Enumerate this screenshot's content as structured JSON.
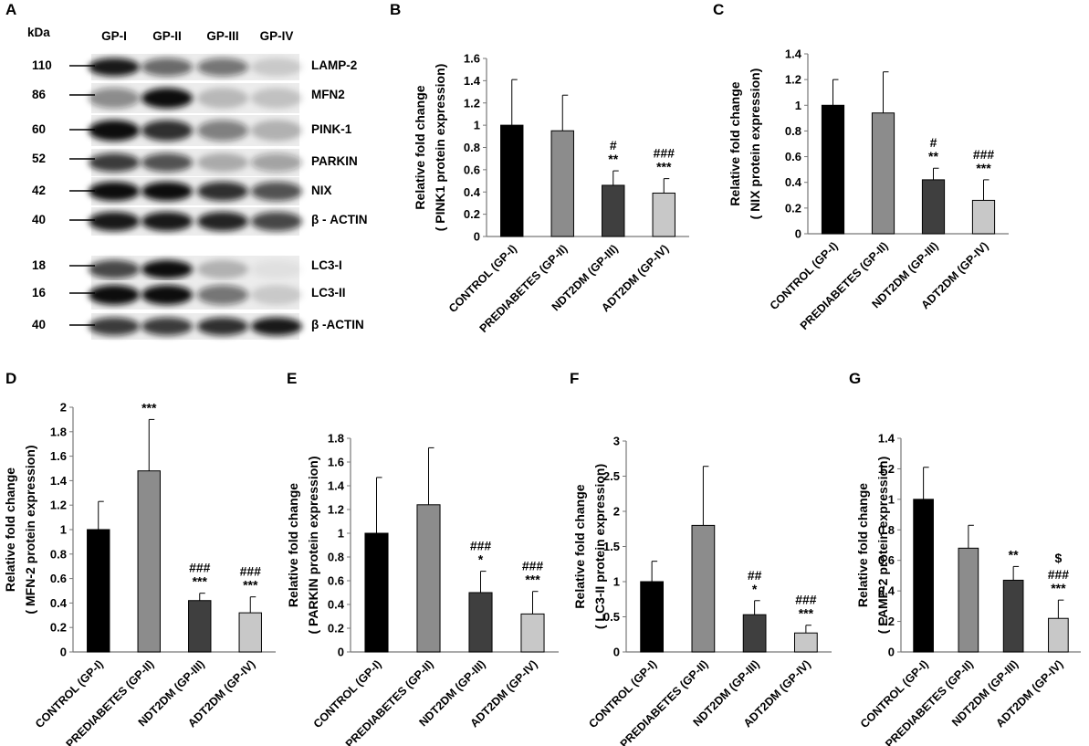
{
  "figure_title": "",
  "western_blot": {
    "panel_label": "A",
    "kda_label": "kDa",
    "lanes": [
      "GP-I",
      "GP-II",
      "GP-III",
      "GP-IV"
    ],
    "bands": [
      {
        "mw": "110",
        "protein": "LAMP-2"
      },
      {
        "mw": "86",
        "protein": "MFN2"
      },
      {
        "mw": "60",
        "protein": "PINK-1"
      },
      {
        "mw": "52",
        "protein": "PARKIN"
      },
      {
        "mw": "42",
        "protein": "NIX"
      },
      {
        "mw": "40",
        "protein": "β - ACTIN"
      },
      {
        "mw": "18",
        "protein": "LC3-I"
      },
      {
        "mw": "16",
        "protein": "LC3-II"
      },
      {
        "mw": "40",
        "protein": "β -ACTIN"
      }
    ]
  },
  "chart_data": [
    {
      "panel": "B",
      "type": "bar",
      "categories": [
        "CONTROL (GP-I)",
        "PREDIABETES (GP-II)",
        "NDT2DM (GP-III)",
        "ADT2DM (GP-IV)"
      ],
      "values": [
        1.0,
        0.95,
        0.46,
        0.39
      ],
      "errors": [
        0.41,
        0.32,
        0.13,
        0.13
      ],
      "ylabel": [
        "Relative fold change",
        "( PINK1 protein expression)"
      ],
      "ylim": [
        0,
        1.6
      ],
      "ytick_step": 0.2,
      "yticks": [
        "0",
        "0.2",
        "0.4",
        "0.6",
        "0.8",
        "1",
        "1.2",
        "1.4",
        "1.6"
      ],
      "significance": [
        [],
        [],
        [
          "#",
          "**"
        ],
        [
          "###",
          "***"
        ]
      ],
      "bar_colors": [
        "#000000",
        "#8c8c8c",
        "#3f3f3f",
        "#c8c8c8"
      ],
      "grid": false
    },
    {
      "panel": "C",
      "type": "bar",
      "categories": [
        "CONTROL (GP-I)",
        "PREDIABETES (GP-II)",
        "NDT2DM (GP-III)",
        "ADT2DM (GP-IV)"
      ],
      "values": [
        1.0,
        0.94,
        0.42,
        0.26
      ],
      "errors": [
        0.2,
        0.32,
        0.09,
        0.16
      ],
      "ylabel": [
        "Relative fold change",
        "( NIX protein expression)"
      ],
      "ylim": [
        0,
        1.4
      ],
      "ytick_step": 0.2,
      "yticks": [
        "0",
        "0.2",
        "0.4",
        "0.6",
        "0.8",
        "1",
        "1.2",
        "1.4"
      ],
      "significance": [
        [],
        [],
        [
          "#",
          "**"
        ],
        [
          "###",
          "***"
        ]
      ],
      "bar_colors": [
        "#000000",
        "#8c8c8c",
        "#3f3f3f",
        "#c8c8c8"
      ],
      "grid": false
    },
    {
      "panel": "D",
      "type": "bar",
      "categories": [
        "CONTROL (GP-I)",
        "PREDIABETES (GP-II)",
        "NDT2DM (GP-III)",
        "ADT2DM (GP-IV)"
      ],
      "values": [
        1.0,
        1.48,
        0.42,
        0.32
      ],
      "errors": [
        0.23,
        0.42,
        0.06,
        0.13
      ],
      "ylabel": [
        "Relative fold change",
        "( MFN-2 protein expression)"
      ],
      "ylim": [
        0,
        2
      ],
      "ytick_step": 0.2,
      "yticks": [
        "0",
        "0.2",
        "0.4",
        "0.6",
        "0.8",
        "1",
        "1.2",
        "1.4",
        "1.6",
        "1.8",
        "2"
      ],
      "significance": [
        [],
        [
          "***"
        ],
        [
          "###",
          "***"
        ],
        [
          "###",
          "***"
        ]
      ],
      "bar_colors": [
        "#000000",
        "#8c8c8c",
        "#3f3f3f",
        "#c8c8c8"
      ],
      "grid": false
    },
    {
      "panel": "E",
      "type": "bar",
      "categories": [
        "CONTROL (GP-I)",
        "PREDIABETES (GP-II)",
        "NDT2DM (GP-III)",
        "ADT2DM (GP-IV)"
      ],
      "values": [
        1.0,
        1.24,
        0.5,
        0.32
      ],
      "errors": [
        0.47,
        0.48,
        0.18,
        0.19
      ],
      "ylabel": [
        "Relative fold change",
        "( PARKIN protein expression)"
      ],
      "ylim": [
        0,
        1.8
      ],
      "ytick_step": 0.2,
      "yticks": [
        "0",
        "0.2",
        "0.4",
        "0.6",
        "0.8",
        "1",
        "1.2",
        "1.4",
        "1.6",
        "1.8"
      ],
      "significance": [
        [],
        [],
        [
          "###",
          "*"
        ],
        [
          "###",
          "***"
        ]
      ],
      "bar_colors": [
        "#000000",
        "#8c8c8c",
        "#3f3f3f",
        "#c8c8c8"
      ],
      "grid": false
    },
    {
      "panel": "F",
      "type": "bar",
      "categories": [
        "CONTROL (GP-I)",
        "PREDIABETES (GP-II)",
        "NDT2DM (GP-III)",
        "ADT2DM (GP-IV)"
      ],
      "values": [
        1.0,
        1.8,
        0.53,
        0.27
      ],
      "errors": [
        0.29,
        0.84,
        0.2,
        0.11
      ],
      "ylabel": [
        "Relative fold change",
        "( LC3-II protein expression)"
      ],
      "ylim": [
        0,
        3
      ],
      "ytick_step": 0.5,
      "yticks": [
        "0",
        "0.5",
        "1",
        "1.5",
        "2",
        "2.5",
        "3"
      ],
      "significance": [
        [],
        [],
        [
          "##",
          "*"
        ],
        [
          "###",
          "***"
        ]
      ],
      "bar_colors": [
        "#000000",
        "#8c8c8c",
        "#3f3f3f",
        "#c8c8c8"
      ],
      "grid": false
    },
    {
      "panel": "G",
      "type": "bar",
      "categories": [
        "CONTROL (GP-I)",
        "PREDIABETES (GP-II)",
        "NDT2DM (GP-III)",
        "ADT2DM (GP-IV)"
      ],
      "values": [
        1.0,
        0.68,
        0.47,
        0.22
      ],
      "errors": [
        0.21,
        0.15,
        0.09,
        0.12
      ],
      "ylabel": [
        "Relative fold change",
        "( LAMP-2 protein expression)"
      ],
      "ylim": [
        0,
        1.4
      ],
      "ytick_step": 0.2,
      "yticks": [
        "0",
        "0.2",
        "0.4",
        "0.6",
        "0.8",
        "1",
        "1.2",
        "1.4"
      ],
      "significance": [
        [],
        [],
        [
          "**"
        ],
        [
          "$",
          "###",
          "***"
        ]
      ],
      "bar_colors": [
        "#000000",
        "#8c8c8c",
        "#3f3f3f",
        "#c8c8c8"
      ],
      "grid": false
    }
  ]
}
